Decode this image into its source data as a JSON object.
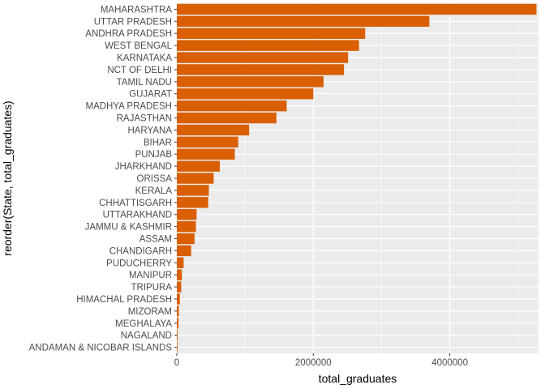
{
  "chart_data": {
    "type": "bar",
    "orientation": "horizontal",
    "title": "",
    "xlabel": "total_graduates",
    "ylabel": "reorder(State, total_graduates)",
    "xlim": [
      0,
      5300000
    ],
    "x_ticks": [
      0,
      2000000,
      4000000
    ],
    "x_tick_labels": [
      "0",
      "2000000",
      "4000000"
    ],
    "grid": true,
    "legend": "none",
    "bar_color": "#D95F02",
    "panel_background": "#EBEBEB",
    "grid_color": "#FFFFFF",
    "categories": [
      "MAHARASHTRA",
      "UTTAR PRADESH",
      "ANDHRA PRADESH",
      "WEST BENGAL",
      "KARNATAKA",
      "NCT OF DELHI",
      "TAMIL NADU",
      "GUJARAT",
      "MADHYA PRADESH",
      "RAJASTHAN",
      "HARYANA",
      "BIHAR",
      "PUNJAB",
      "JHARKHAND",
      "ORISSA",
      "KERALA",
      "CHHATTISGARH",
      "UTTARAKHAND",
      "JAMMU & KASHMIR",
      "ASSAM",
      "CHANDIGARH",
      "PUDUCHERRY",
      "MANIPUR",
      "TRIPURA",
      "HIMACHAL PRADESH",
      "MIZORAM",
      "MEGHALAYA",
      "NAGALAND",
      "ANDAMAN & NICOBAR ISLANDS"
    ],
    "values": [
      5270000,
      3700000,
      2760000,
      2670000,
      2510000,
      2450000,
      2150000,
      2000000,
      1610000,
      1460000,
      1060000,
      900000,
      850000,
      630000,
      540000,
      470000,
      460000,
      290000,
      280000,
      260000,
      210000,
      100000,
      75000,
      65000,
      45000,
      30000,
      25000,
      12000,
      8000
    ]
  }
}
